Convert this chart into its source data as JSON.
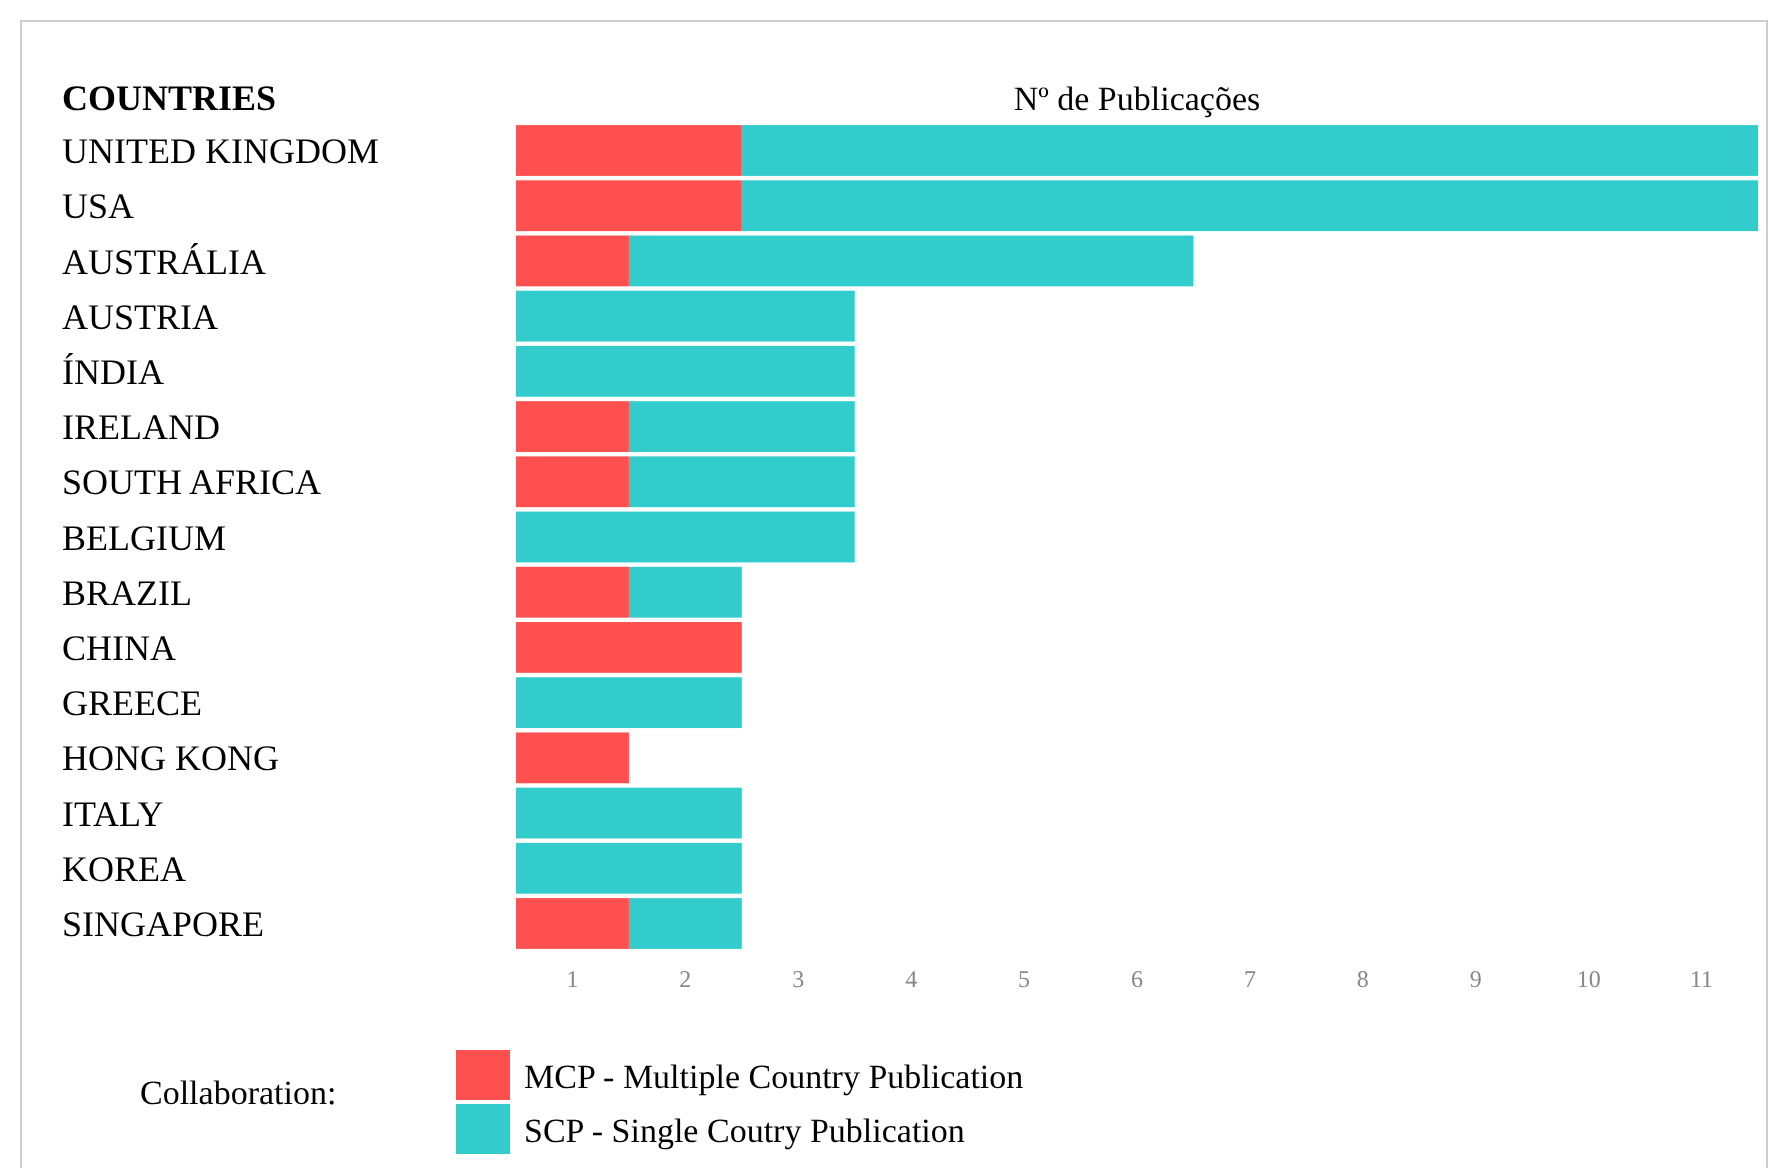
{
  "chart_data": {
    "type": "bar",
    "orientation": "horizontal",
    "stacked": true,
    "xlabel": "Nº de Publicações",
    "ylabel": "COUNTRIES",
    "legend_title": "Collaboration:",
    "legend": "bottom",
    "categories": [
      "UNITED KINGDOM",
      "USA",
      "AUSTRÁLIA",
      "AUSTRIA",
      "ÍNDIA",
      "IRELAND",
      "SOUTH AFRICA",
      "BELGIUM",
      "BRAZIL",
      "CHINA",
      "GREECE",
      "HONG KONG",
      "ITALY",
      "KOREA",
      "SINGAPORE"
    ],
    "series": [
      {
        "name": "MCP - Multiple Country Publication",
        "color": "#ff5050",
        "values": [
          2,
          2,
          1,
          0,
          0,
          1,
          1,
          0,
          1,
          2,
          0,
          1,
          0,
          0,
          1
        ]
      },
      {
        "name": "SCP - Single Coutry Publication",
        "color": "#33cccc",
        "values": [
          9,
          9,
          5,
          3,
          3,
          2,
          2,
          3,
          1,
          0,
          2,
          0,
          2,
          2,
          1
        ]
      }
    ],
    "xlim": [
      0,
      11
    ],
    "xticks": [
      {
        "value": 0.5,
        "label": "1"
      },
      {
        "value": 1.5,
        "label": "2"
      },
      {
        "value": 2.5,
        "label": "3"
      },
      {
        "value": 3.5,
        "label": "4"
      },
      {
        "value": 4.5,
        "label": "5"
      },
      {
        "value": 5.5,
        "label": "6"
      },
      {
        "value": 6.5,
        "label": "7"
      },
      {
        "value": 7.5,
        "label": "8"
      },
      {
        "value": 8.5,
        "label": "9"
      },
      {
        "value": 9.5,
        "label": "10"
      },
      {
        "value": 10.5,
        "label": "11"
      }
    ],
    "grid": false
  }
}
